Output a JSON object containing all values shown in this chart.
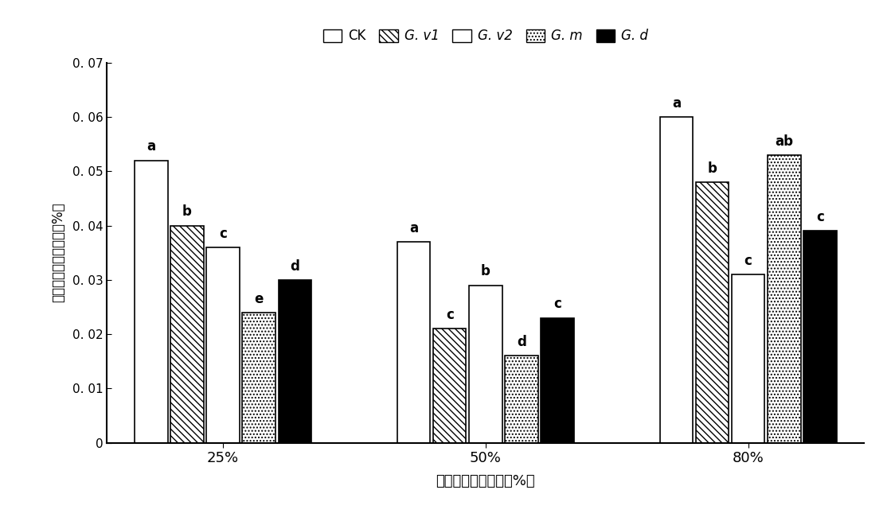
{
  "groups": [
    "25%",
    "50%",
    "80%"
  ],
  "series": [
    "CK",
    "G. v1",
    "G. v2",
    "G. m",
    "G. d"
  ],
  "values": {
    "25%": [
      0.052,
      0.04,
      0.036,
      0.024,
      0.03
    ],
    "50%": [
      0.037,
      0.021,
      0.029,
      0.016,
      0.023
    ],
    "80%": [
      0.06,
      0.048,
      0.031,
      0.053,
      0.039
    ]
  },
  "annotations": {
    "25%": [
      "a",
      "b",
      "c",
      "e",
      "d"
    ],
    "50%": [
      "a",
      "c",
      "b",
      "d",
      "c"
    ],
    "80%": [
      "a",
      "b",
      "c",
      "ab",
      "c"
    ]
  },
  "ylabel": "大豆叶片脖氨酸含量（%）",
  "xlabel": "不同基质水分含量（%）",
  "ylim": [
    0,
    0.07
  ],
  "yticks": [
    0,
    0.01,
    0.02,
    0.03,
    0.04,
    0.05,
    0.06,
    0.07
  ],
  "ytick_labels": [
    "0",
    "0. 01",
    "0. 02",
    "0. 03",
    "0. 04",
    "0. 05",
    "0. 06",
    "0. 07"
  ],
  "bar_width": 0.13,
  "group_centers": [
    0.35,
    1.3,
    2.25
  ],
  "annot_fontsize": 12,
  "legend_labels": [
    "CK",
    "G. v1",
    "G. v2",
    "G. m",
    "G. d"
  ]
}
